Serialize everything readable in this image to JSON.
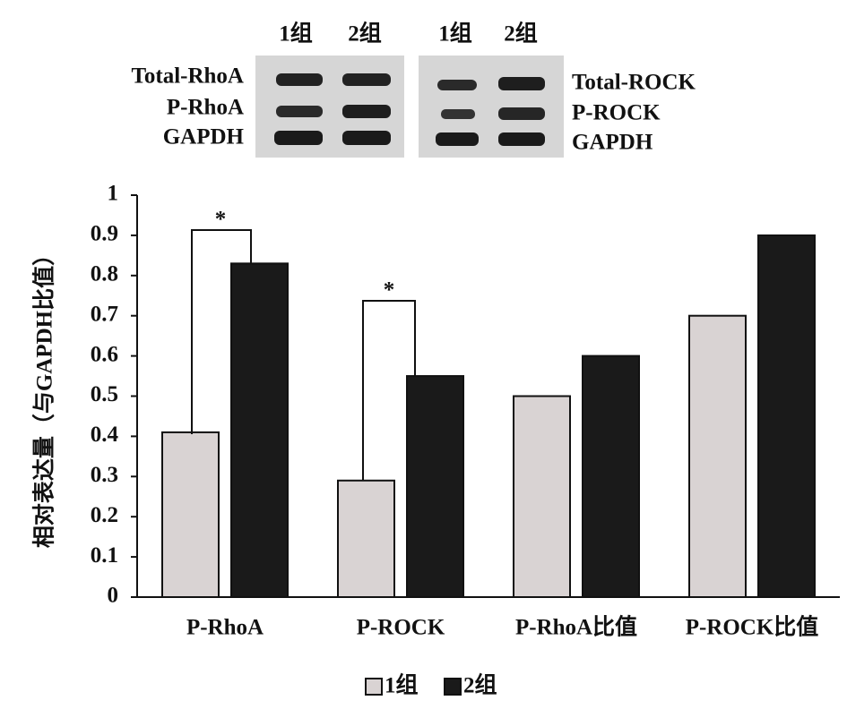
{
  "blot": {
    "lanes": [
      "1组",
      "2组",
      "1组",
      "2组"
    ],
    "left_labels": [
      "Total-RhoA",
      "P-RhoA",
      "GAPDH"
    ],
    "right_labels": [
      "Total-ROCK",
      "P-ROCK",
      "GAPDH"
    ]
  },
  "chart_data": {
    "type": "bar",
    "y_label": "相对表达量（与GAPDH比值）",
    "categories": [
      "P-RhoA",
      "P-ROCK",
      "P-RhoA比值",
      "P-ROCK比值"
    ],
    "series": [
      {
        "name": "1组",
        "color": "#d9d3d3",
        "values": [
          0.41,
          0.29,
          0.5,
          0.7
        ]
      },
      {
        "name": "2组",
        "color": "#1a1a1a",
        "values": [
          0.83,
          0.55,
          0.6,
          0.9
        ]
      }
    ],
    "annotations": [
      "*",
      "*"
    ],
    "ylim": [
      0,
      1
    ],
    "yticks": [
      0,
      0.1,
      0.2,
      0.3,
      0.4,
      0.5,
      0.6,
      0.7,
      0.8,
      0.9,
      1
    ],
    "grid": false,
    "legend": "bottom"
  }
}
